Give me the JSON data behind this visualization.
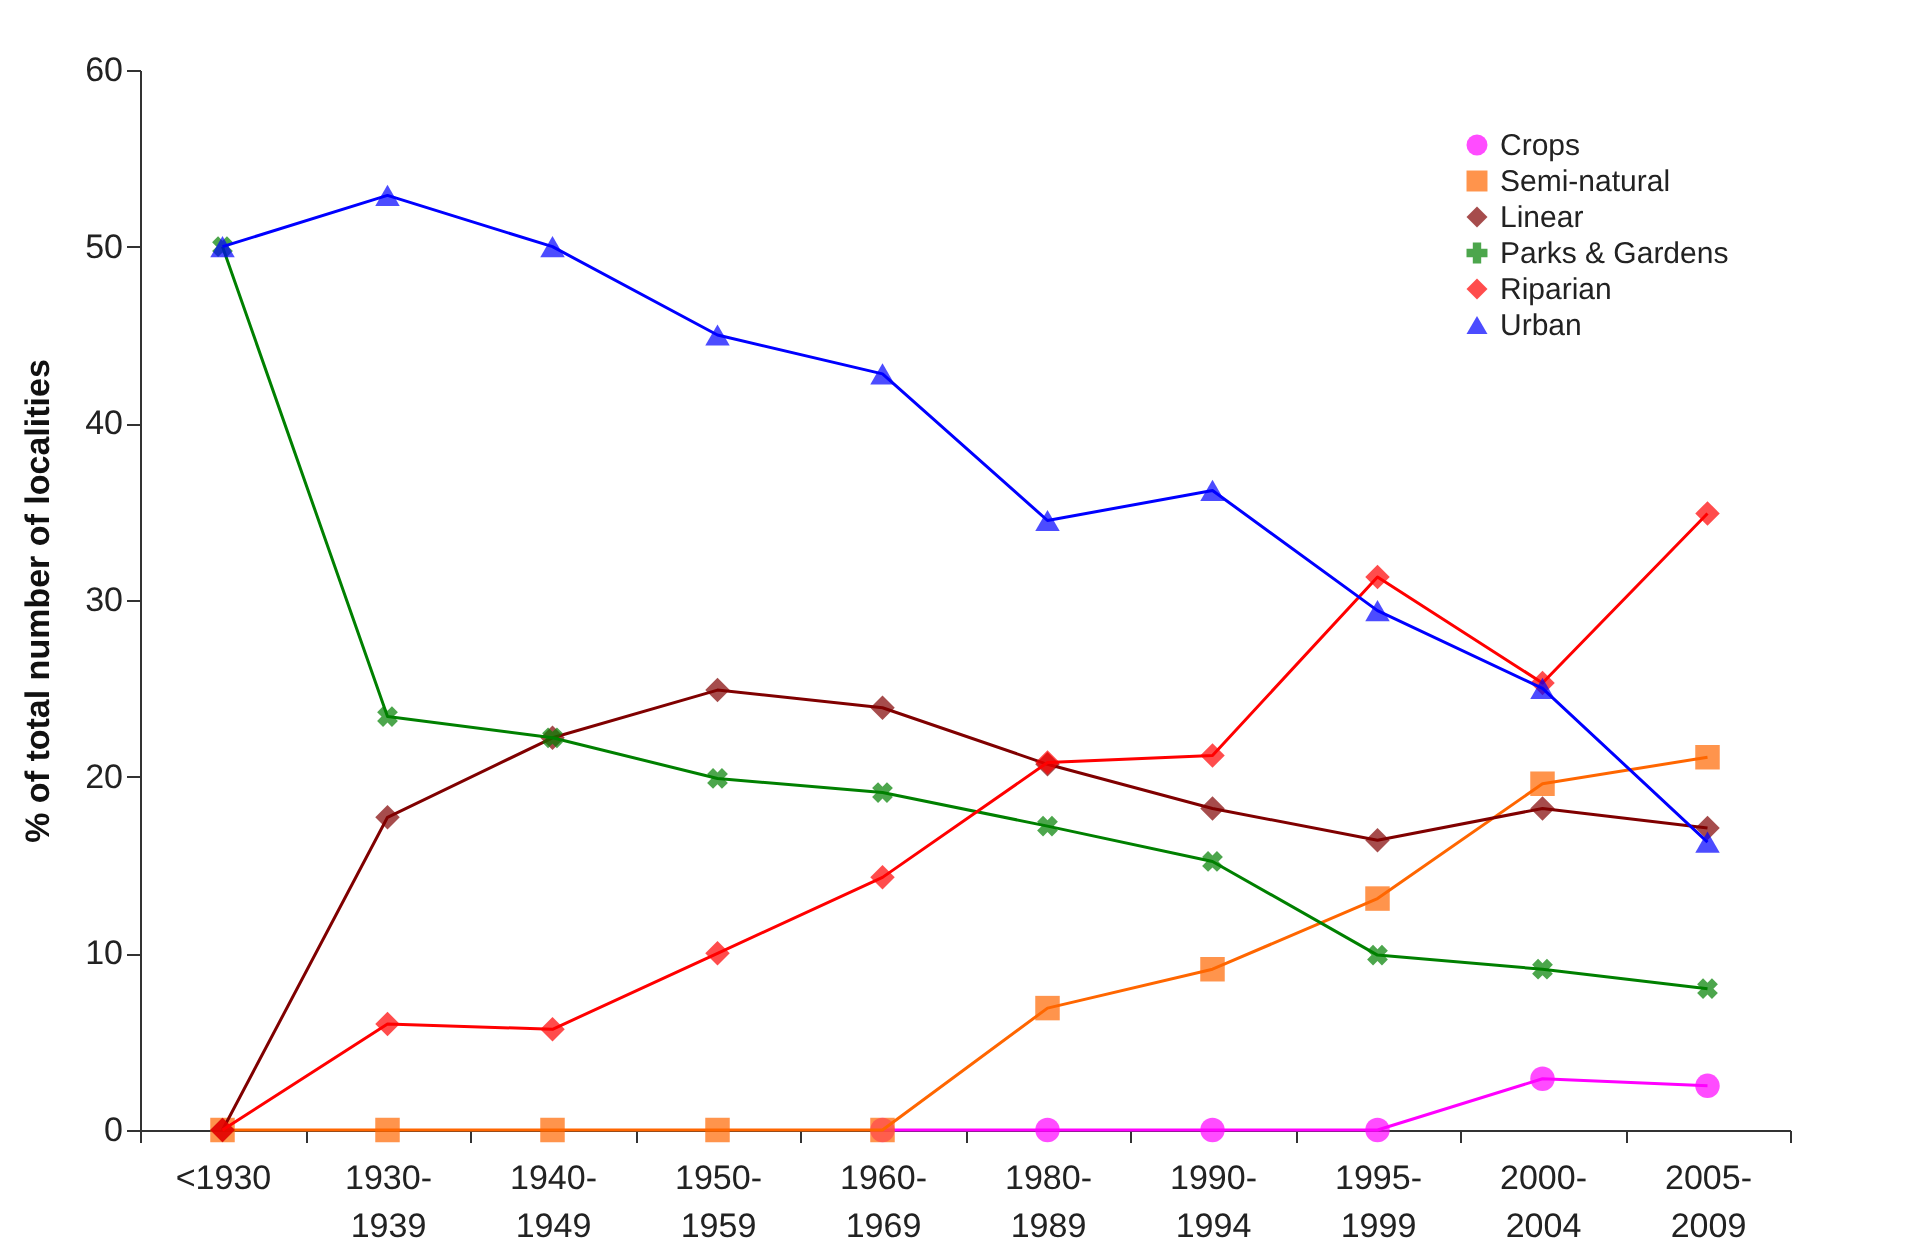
{
  "chart_data": {
    "type": "line",
    "ylabel": "% of total number of localities",
    "categories": [
      "<1930",
      "1930-1939",
      "1940-1949",
      "1950-1959",
      "1960-1969",
      "1980-1989",
      "1990-1994",
      "1995-1999",
      "2000-2004",
      "2005-2009"
    ],
    "ylim": [
      0,
      60
    ],
    "yticks": [
      0,
      10,
      20,
      30,
      40,
      50,
      60
    ],
    "grid": false,
    "legend": "top right",
    "line_style": "solid",
    "series": [
      {
        "name": "Crops",
        "color": "#ff00ff",
        "marker": "circle",
        "values": [
          null,
          null,
          null,
          null,
          0,
          0,
          0,
          0,
          2.9,
          2.5
        ]
      },
      {
        "name": "Semi-natural",
        "color": "#ff6600",
        "marker": "square",
        "values": [
          0,
          0,
          0,
          0,
          0,
          6.9,
          9.1,
          13.1,
          19.6,
          21.1
        ]
      },
      {
        "name": "Linear",
        "color": "#800000",
        "marker": "diamond",
        "values": [
          0,
          17.7,
          22.2,
          24.9,
          23.9,
          20.7,
          18.2,
          16.4,
          18.2,
          17.1
        ]
      },
      {
        "name": "Parks & Gardens",
        "color": "#008000",
        "marker": "cross",
        "values": [
          50,
          23.4,
          22.2,
          19.9,
          19.1,
          17.2,
          15.2,
          9.9,
          9.1,
          8.0
        ]
      },
      {
        "name": "Riparian",
        "color": "#ff0000",
        "marker": "diamond",
        "values": [
          0,
          6.0,
          5.7,
          10,
          14.3,
          20.8,
          21.2,
          31.3,
          25.3,
          34.9
        ]
      },
      {
        "name": "Urban",
        "color": "#0000ff",
        "marker": "triangle",
        "values": [
          50,
          52.9,
          50,
          45,
          42.8,
          34.5,
          36.2,
          29.4,
          25.0,
          16.3
        ]
      }
    ]
  }
}
